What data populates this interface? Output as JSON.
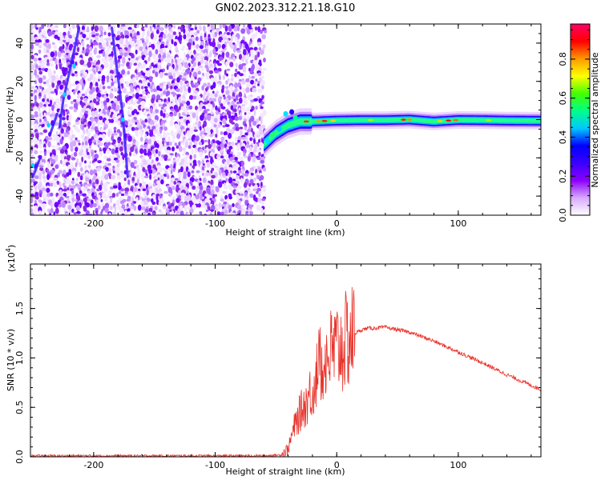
{
  "title": "GN02.2023.312.21.18.G10",
  "chart_data": [
    {
      "type": "heatmap",
      "xlabel": "Height of straight line (km)",
      "ylabel": "Frequency (Hz)",
      "xlim": [
        -252,
        168
      ],
      "ylim": [
        -50,
        50
      ],
      "xticks": [
        "-200",
        "-100",
        "0",
        "100"
      ],
      "yticks": [
        "-40",
        "-20",
        "0",
        "20",
        "40"
      ],
      "xtick_values": [
        -200,
        -100,
        0,
        100
      ],
      "ytick_values": [
        -40,
        -20,
        0,
        20,
        40
      ],
      "colorbar": {
        "label": "Normalized spectral amplitude",
        "ticks": [
          "0.0",
          "0.2",
          "0.4",
          "0.6",
          "0.8"
        ],
        "tick_values": [
          0.0,
          0.2,
          0.4,
          0.6,
          0.8
        ],
        "range": [
          0,
          0.98
        ],
        "colormap": [
          "#ffffff",
          "#d8a8ff",
          "#8b00ff",
          "#3a00ff",
          "#0000ff",
          "#00c8ff",
          "#00ff88",
          "#44ff00",
          "#ffff00",
          "#ff9900",
          "#ff0000",
          "#ff0066"
        ]
      },
      "noise_region_x": [
        -252,
        -60
      ],
      "ridge": {
        "description_free": true,
        "x": [
          -60,
          -50,
          -40,
          -30,
          -20,
          0,
          20,
          40,
          60,
          80,
          100,
          120,
          140,
          168
        ],
        "y": [
          -13,
          -7,
          -3,
          -1,
          -1,
          -0.5,
          -0.3,
          -0.3,
          0,
          -1,
          -0.2,
          -0.3,
          -0.5,
          -0.6
        ]
      }
    },
    {
      "type": "line",
      "xlabel": "Height of straight line (km)",
      "ylabel": "SNR (10 * v/v)",
      "yscale_label": "(x10",
      "yscale_exp": "4",
      "yscale_suffix": ")",
      "xlim": [
        -252,
        168
      ],
      "ylim": [
        0,
        1.95
      ],
      "xticks": [
        "-200",
        "-100",
        "0",
        "100"
      ],
      "yticks": [
        "0.0",
        "0.5",
        "1.0",
        "1.5"
      ],
      "xtick_values": [
        -200,
        -100,
        0,
        100
      ],
      "ytick_values": [
        0.0,
        0.5,
        1.0,
        1.5
      ],
      "color": "#e8322a",
      "series": [
        {
          "x": [
            -252,
            -200,
            -150,
            -100,
            -60,
            -45,
            -40,
            -35,
            -30,
            -25,
            -20,
            -15,
            -10,
            -5,
            0,
            5,
            10,
            15,
            20,
            25,
            30,
            40,
            60,
            80,
            100,
            120,
            140,
            168
          ],
          "values": [
            0.01,
            0.01,
            0.01,
            0.01,
            0.01,
            0.02,
            0.08,
            0.3,
            0.45,
            0.55,
            0.7,
            0.9,
            1.0,
            1.05,
            1.1,
            1.12,
            1.2,
            1.25,
            1.28,
            1.3,
            1.3,
            1.31,
            1.26,
            1.17,
            1.06,
            0.95,
            0.83,
            0.68
          ]
        }
      ]
    }
  ]
}
